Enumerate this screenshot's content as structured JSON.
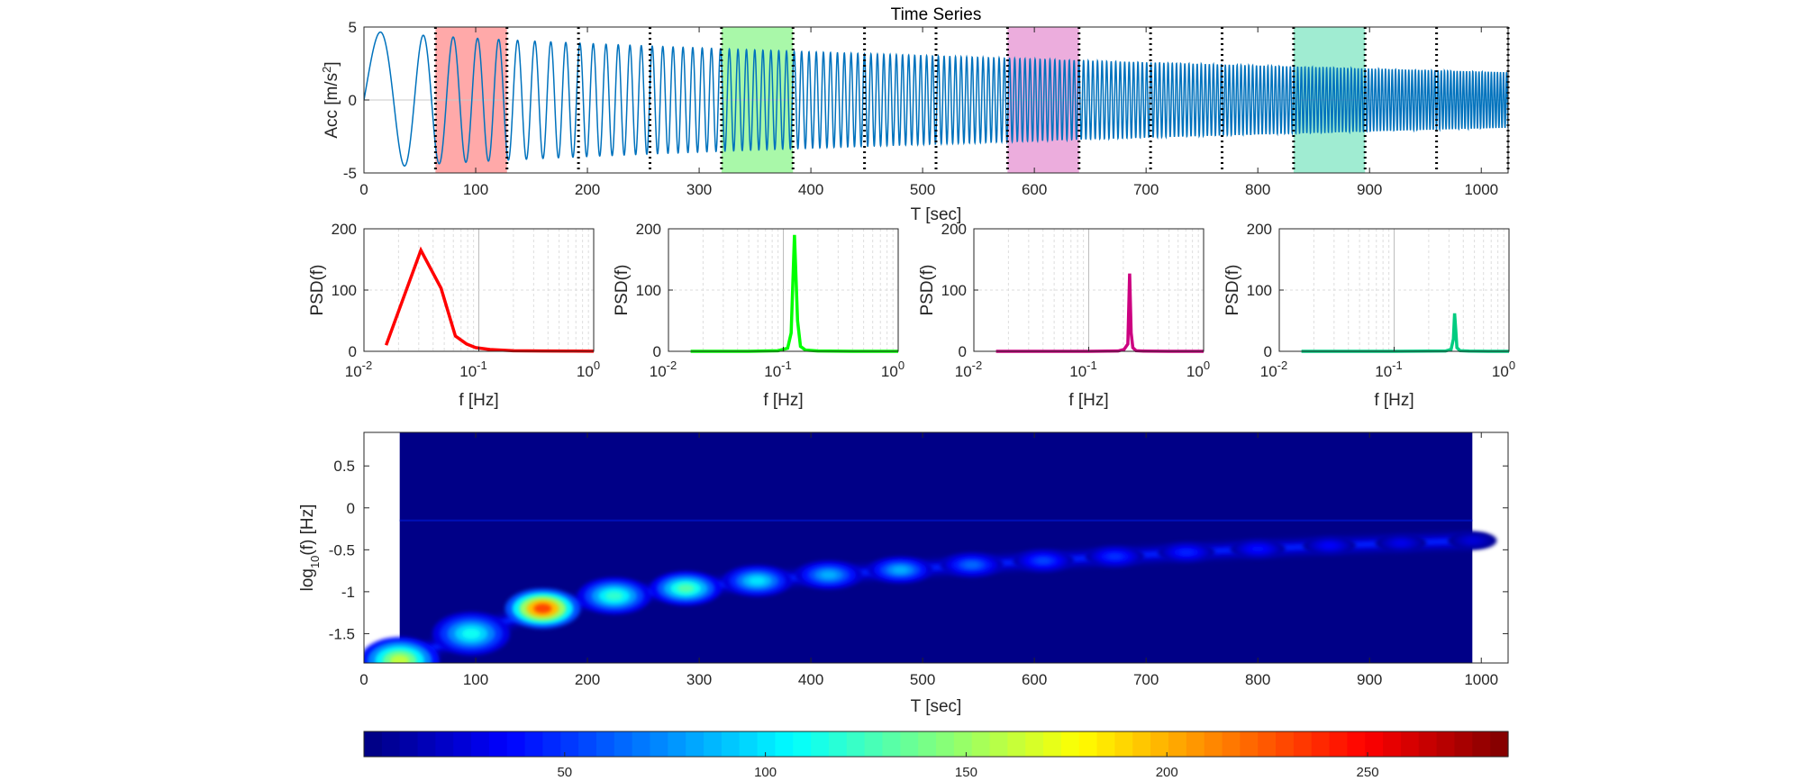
{
  "colors": {
    "series": "#0072BD",
    "psd": [
      "#FF0000",
      "#00FF00",
      "#CC0080",
      "#00CC80"
    ],
    "window_fill": [
      "#FF8C8C",
      "#8CF58C",
      "#E691D1",
      "#80E6C3"
    ],
    "axis": "#262626",
    "grid": "#C8C8C8"
  },
  "chart_data": [
    {
      "type": "line",
      "title": "Time Series",
      "xlabel": "T [sec]",
      "ylabel": "Acc [m/s",
      "ylabel_sup": "2",
      "ylabel_end": "]",
      "xlim": [
        0,
        1024
      ],
      "ylim": [
        -5,
        5
      ],
      "xticks": [
        "0",
        "100",
        "200",
        "300",
        "400",
        "500",
        "600",
        "700",
        "800",
        "900",
        "1000"
      ],
      "yticks": [
        "-5",
        "0",
        "5"
      ],
      "series": [
        {
          "description": "swept sine, amplitude decaying from 4.8 to 1.9, frequency rising from 0.014 Hz to 0.37 Hz",
          "amplitude_start": 4.8,
          "amplitude_end": 1.9,
          "freq_start_hz": 0.0143,
          "freq_end_hz": 0.37,
          "duration": 1024
        }
      ],
      "window_boundaries": [
        64,
        128,
        192,
        256,
        320,
        384,
        448,
        512,
        576,
        640,
        704,
        768,
        832,
        896,
        960,
        1024
      ],
      "highlighted_windows": [
        [
          64,
          128
        ],
        [
          320,
          384
        ],
        [
          576,
          640
        ],
        [
          832,
          896
        ]
      ]
    },
    {
      "type": "line",
      "xlabel": "f [Hz]",
      "ylabel": "PSD(f)",
      "xscale": "log",
      "xlim": [
        0.01,
        1
      ],
      "ylim": [
        0,
        200
      ],
      "yticks": [
        "0",
        "100",
        "200"
      ],
      "x": [
        0.0156,
        0.0313,
        0.0469,
        0.0625,
        0.0781,
        0.0938,
        0.125,
        0.2,
        0.35,
        0.6,
        1.0
      ],
      "values": [
        10,
        165,
        103,
        25,
        12,
        6,
        3,
        1,
        0.5,
        0.3,
        0.2
      ]
    },
    {
      "type": "line",
      "xlabel": "f [Hz]",
      "ylabel": "PSD(f)",
      "xscale": "log",
      "xlim": [
        0.01,
        1
      ],
      "ylim": [
        0,
        200
      ],
      "yticks": [
        "0",
        "100",
        "200"
      ],
      "x": [
        0.0156,
        0.05,
        0.09,
        0.109,
        0.117,
        0.125,
        0.133,
        0.141,
        0.156,
        0.2,
        0.4,
        1.0
      ],
      "values": [
        0,
        0,
        1,
        5,
        30,
        190,
        50,
        8,
        2,
        0.5,
        0,
        0
      ]
    },
    {
      "type": "line",
      "xlabel": "f [Hz]",
      "ylabel": "PSD(f)",
      "xscale": "log",
      "xlim": [
        0.01,
        1
      ],
      "ylim": [
        0,
        200
      ],
      "yticks": [
        "0",
        "100",
        "200"
      ],
      "x": [
        0.0156,
        0.1,
        0.18,
        0.203,
        0.219,
        0.227,
        0.234,
        0.242,
        0.258,
        0.3,
        0.5,
        1.0
      ],
      "values": [
        0,
        0,
        0.5,
        3,
        12,
        127,
        30,
        6,
        1,
        0.3,
        0,
        0
      ]
    },
    {
      "type": "line",
      "xlabel": "f [Hz]",
      "ylabel": "PSD(f)",
      "xscale": "log",
      "xlim": [
        0.01,
        1
      ],
      "ylim": [
        0,
        200
      ],
      "yticks": [
        "0",
        "100",
        "200"
      ],
      "x": [
        0.0156,
        0.1,
        0.28,
        0.313,
        0.328,
        0.336,
        0.344,
        0.352,
        0.375,
        0.45,
        0.7,
        1.0
      ],
      "values": [
        0,
        0,
        0.5,
        3,
        20,
        62,
        35,
        6,
        1,
        0.3,
        0,
        0
      ]
    },
    {
      "type": "heatmap",
      "xlabel": "T [sec]",
      "ylabel": "log",
      "ylabel_sub": "10",
      "ylabel_end": "(f) [Hz]",
      "xlim": [
        0,
        1024
      ],
      "ylim": [
        -1.85,
        0.9
      ],
      "data_x_range": [
        32,
        992
      ],
      "xticks": [
        "0",
        "100",
        "200",
        "300",
        "400",
        "500",
        "600",
        "700",
        "800",
        "900",
        "1000"
      ],
      "yticks": [
        "-1.5",
        "-1",
        "-0.5",
        "0",
        "0.5"
      ],
      "ridge_points": [
        [
          32,
          -1.82
        ],
        [
          96,
          -1.5
        ],
        [
          160,
          -1.2
        ],
        [
          224,
          -1.05
        ],
        [
          288,
          -0.96
        ],
        [
          352,
          -0.87
        ],
        [
          416,
          -0.8
        ],
        [
          480,
          -0.74
        ],
        [
          544,
          -0.68
        ],
        [
          608,
          -0.63
        ],
        [
          672,
          -0.58
        ],
        [
          736,
          -0.53
        ],
        [
          800,
          -0.49
        ],
        [
          864,
          -0.45
        ],
        [
          928,
          -0.42
        ],
        [
          992,
          -0.39
        ]
      ],
      "ridge_peak_values": [
        160,
        110,
        230,
        120,
        130,
        100,
        85,
        85,
        65,
        55,
        50,
        45,
        40,
        35,
        30,
        25
      ],
      "colorbar": {
        "colormap": "jet",
        "range": [
          0,
          285
        ],
        "ticks": [
          "50",
          "100",
          "150",
          "200",
          "250"
        ]
      }
    }
  ]
}
